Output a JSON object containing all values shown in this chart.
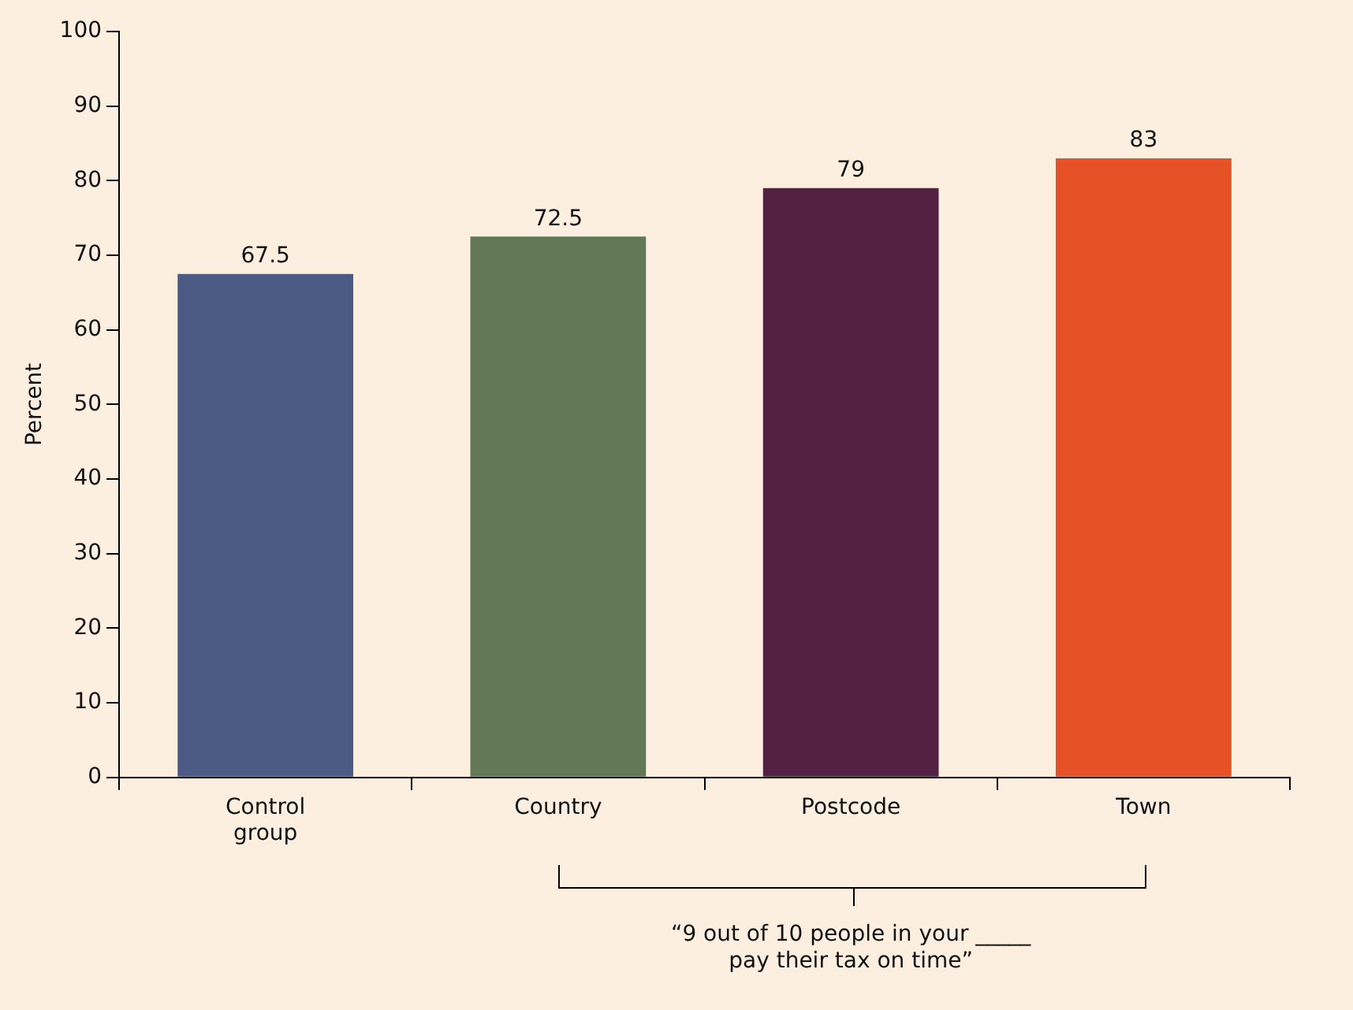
{
  "chart_data": {
    "type": "bar",
    "ylabel": "Percent",
    "categories": [
      "Control group",
      "Country",
      "Postcode",
      "Town"
    ],
    "values": [
      67.5,
      72.5,
      79,
      83
    ],
    "colors": [
      "#4b5b84",
      "#627856",
      "#532243",
      "#e65125"
    ],
    "ylim": [
      0,
      100
    ],
    "yticks": [
      0,
      10,
      20,
      30,
      40,
      50,
      60,
      70,
      80,
      90,
      100
    ],
    "grid": false,
    "legend": false,
    "data_labels": true,
    "annotations": [
      "“9 out of 10 people in your _____ pay their tax on time”"
    ]
  }
}
